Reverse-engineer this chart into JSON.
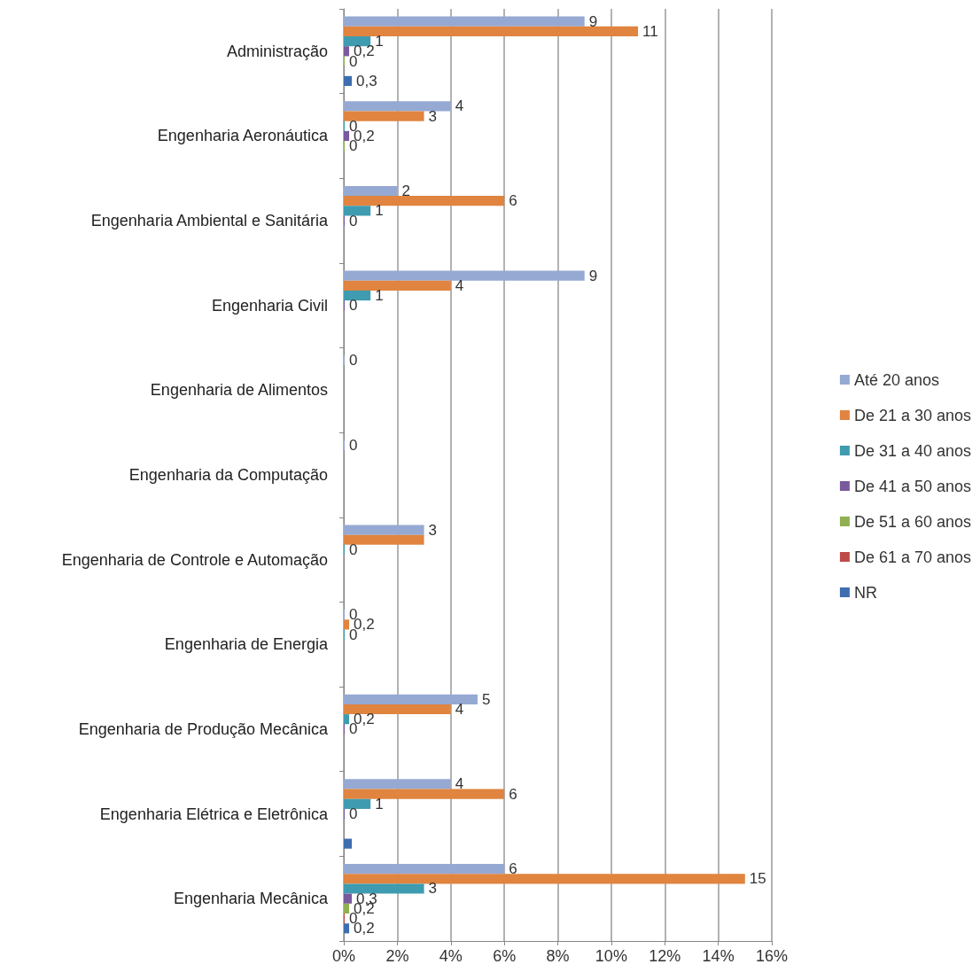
{
  "chart_data": {
    "type": "bar",
    "orientation": "horizontal",
    "categories": [
      "Administração",
      "Engenharia Aeronáutica",
      "Engenharia Ambiental e Sanitária",
      "Engenharia Civil",
      "Engenharia de Alimentos",
      "Engenharia da Computação",
      "Engenharia de Controle e Automação",
      "Engenharia de Energia",
      "Engenharia de Produção Mecânica",
      "Engenharia Elétrica e Eletrônica",
      "Engenharia Mecânica"
    ],
    "series": [
      {
        "name": "Até 20 anos",
        "color": "#95a9d3",
        "values": [
          9,
          4,
          2,
          9,
          0,
          0,
          3,
          0,
          5,
          4,
          6
        ],
        "value_labels": [
          "9",
          "4",
          "2",
          "9",
          "0",
          "0",
          "3",
          "0",
          "5",
          "4",
          "6"
        ]
      },
      {
        "name": "De 21 a 30 anos",
        "color": "#e0843f",
        "values": [
          11,
          3,
          6,
          4,
          null,
          null,
          3,
          0.2,
          4,
          6,
          15
        ],
        "value_labels": [
          "11",
          "3",
          "6",
          "4",
          null,
          null,
          null,
          "0,2",
          "4",
          "6",
          "15"
        ]
      },
      {
        "name": "De 31 a 40 anos",
        "color": "#3f9bb0",
        "values": [
          1,
          0,
          1,
          1,
          null,
          null,
          0,
          0,
          0.2,
          1,
          3
        ],
        "value_labels": [
          "1",
          "0",
          "1",
          "1",
          null,
          null,
          "0",
          "0",
          "0,2",
          "1",
          "3"
        ]
      },
      {
        "name": "De 41 a 50 anos",
        "color": "#7a5a9e",
        "values": [
          0.2,
          0.2,
          0,
          0,
          null,
          null,
          null,
          null,
          0,
          0,
          0.3
        ],
        "value_labels": [
          "0,2",
          "0,2",
          "0",
          "0",
          null,
          null,
          null,
          null,
          "0",
          "0",
          "0,3"
        ]
      },
      {
        "name": "De 51 a 60 anos",
        "color": "#8fb050",
        "values": [
          0,
          0,
          null,
          null,
          null,
          null,
          null,
          null,
          null,
          null,
          0.2
        ],
        "value_labels": [
          "0",
          "0",
          null,
          null,
          null,
          null,
          null,
          null,
          null,
          null,
          "0,2"
        ]
      },
      {
        "name": "De 61 a 70 anos",
        "color": "#bf4b48",
        "values": [
          null,
          null,
          null,
          null,
          null,
          null,
          null,
          null,
          null,
          null,
          0
        ],
        "value_labels": [
          null,
          null,
          null,
          null,
          null,
          null,
          null,
          null,
          null,
          null,
          "0"
        ]
      },
      {
        "name": "NR",
        "color": "#3e6eb0",
        "values": [
          0.3,
          null,
          null,
          null,
          null,
          null,
          null,
          null,
          null,
          0.3,
          0.2
        ],
        "value_labels": [
          "0,3",
          null,
          null,
          null,
          null,
          null,
          null,
          null,
          null,
          null,
          "0,2"
        ]
      }
    ],
    "xlim": [
      0,
      16
    ],
    "xticks": [
      {
        "value": 0,
        "label": "0%"
      },
      {
        "value": 2,
        "label": "2%"
      },
      {
        "value": 4,
        "label": "4%"
      },
      {
        "value": 6,
        "label": "6%"
      },
      {
        "value": 8,
        "label": "8%"
      },
      {
        "value": 10,
        "label": "10%"
      },
      {
        "value": 12,
        "label": "12%"
      },
      {
        "value": 14,
        "label": "14%"
      },
      {
        "value": 16,
        "label": "16%"
      }
    ],
    "grid": "x",
    "legend": "right"
  }
}
